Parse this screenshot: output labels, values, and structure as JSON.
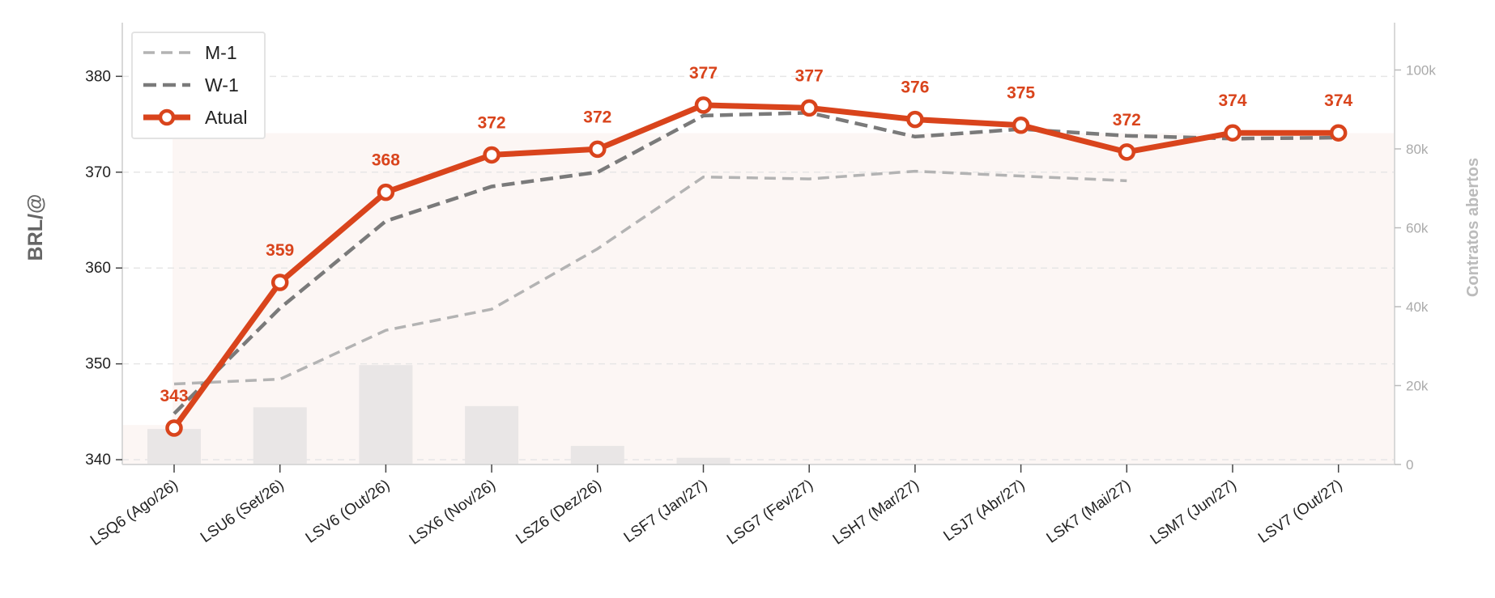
{
  "chart_data": {
    "type": "line",
    "categories": [
      "LSQ6 (Ago/26)",
      "LSU6 (Set/26)",
      "LSV6 (Out/26)",
      "LSX6 (Nov/26)",
      "LSZ6 (Dez/26)",
      "LSF7 (Jan/27)",
      "LSG7 (Fev/27)",
      "LSH7 (Mar/27)",
      "LSJ7 (Abr/27)",
      "LSK7 (Mai/27)",
      "LSM7 (Jun/27)",
      "LSV7 (Out/27)"
    ],
    "ylabel": "BRL/@",
    "y2label": "Contratos abertos",
    "ylim": [
      339.5,
      385.6
    ],
    "y2lim": [
      0,
      112000
    ],
    "yticks": [
      "340",
      "350",
      "360",
      "370",
      "380"
    ],
    "y2ticks": [
      "0",
      "20k",
      "40k",
      "60k",
      "80k",
      "100k"
    ],
    "grid": true,
    "legend_position": "top-left",
    "series": [
      {
        "name": "M-1",
        "style": "dashed-light",
        "color": "#b3b3b3",
        "values": [
          347.9,
          348.4,
          353.5,
          355.7,
          362.0,
          369.5,
          369.3,
          370.1,
          369.6,
          369.1,
          null,
          null
        ]
      },
      {
        "name": "W-1",
        "style": "dashed-dark",
        "color": "#7a7a7a",
        "values": [
          344.8,
          355.8,
          364.9,
          368.5,
          370.0,
          375.9,
          376.2,
          373.7,
          374.5,
          373.8,
          373.5,
          373.6
        ]
      },
      {
        "name": "Atual",
        "style": "solid-marker",
        "color": "#d9441c",
        "values": [
          343.3,
          358.5,
          367.9,
          371.8,
          372.4,
          377.0,
          376.7,
          375.5,
          374.9,
          372.1,
          374.1,
          374.1
        ],
        "labels": [
          "343",
          "359",
          "368",
          "372",
          "372",
          "377",
          "377",
          "376",
          "375",
          "372",
          "374",
          "374"
        ]
      }
    ],
    "open_interest": {
      "color": "#e9e6e6",
      "values": [
        9000,
        14500,
        25200,
        14800,
        4700,
        1700,
        0,
        0,
        0,
        0,
        0,
        0
      ]
    },
    "background_area": {
      "color": "#fcf6f4",
      "values": [
        10000,
        84000
      ]
    }
  }
}
